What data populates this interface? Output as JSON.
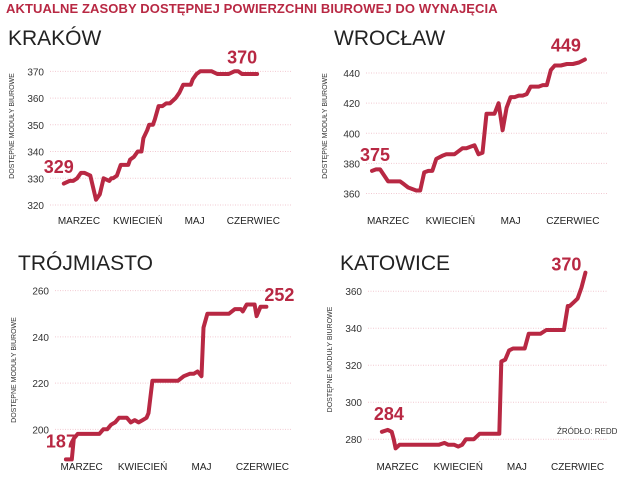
{
  "header": {
    "title": "AKTUALNE ZASOBY DOSTĘPNEJ POWIERZCHNI BIUROWEJ DO WYNAJĘCIA"
  },
  "source": "ŹRÓDŁO: REDD",
  "colors": {
    "line": "#b82843",
    "grid": "#f2c9d1",
    "header": "#b82843"
  },
  "chart_data": [
    {
      "type": "line",
      "title": "KRAKÓW",
      "ylabel": "DOSTĘPNE MODUŁY BIUROWE",
      "ylim": [
        320,
        372
      ],
      "yticks": [
        320,
        330,
        340,
        350,
        360,
        370
      ],
      "xticks": [
        {
          "x": 0,
          "label": "MARZEC"
        },
        {
          "x": 31,
          "label": "KWIECIEŃ"
        },
        {
          "x": 61,
          "label": "MAJ"
        },
        {
          "x": 92,
          "label": "CZERWIEC"
        }
      ],
      "xlim": [
        -10,
        105
      ],
      "grid": true,
      "annotations": [
        {
          "label": "329",
          "value": 329
        },
        {
          "label": "370",
          "value": 370
        }
      ],
      "x": [
        -8,
        -5,
        -3,
        -1,
        1,
        3,
        6,
        9,
        11,
        13,
        16,
        17,
        18,
        20,
        22,
        24,
        26,
        27,
        29,
        31,
        33,
        34,
        36,
        37,
        39,
        40,
        42,
        43,
        44,
        46,
        48,
        51,
        53,
        55,
        57,
        59,
        60,
        62,
        64,
        67,
        70,
        73,
        76,
        79,
        82,
        84,
        86,
        88,
        91,
        94
      ],
      "y": [
        328,
        329,
        329,
        330,
        332,
        332,
        331,
        322,
        324,
        330,
        329,
        330,
        330,
        331,
        335,
        335,
        335,
        337,
        338,
        340,
        340,
        345,
        348,
        350,
        350,
        352,
        357,
        357,
        357,
        358,
        358,
        360,
        362,
        365,
        365,
        365,
        367,
        369,
        370,
        370,
        370,
        369,
        369,
        369,
        370,
        370,
        369,
        369,
        369,
        369
      ]
    },
    {
      "type": "line",
      "title": "WROCŁAW",
      "ylabel": "DOSTĘPNE MODUŁY BIUROWE",
      "ylim": [
        355,
        452
      ],
      "yticks": [
        360,
        380,
        400,
        420,
        440
      ],
      "xticks": [
        {
          "x": 0,
          "label": "MARZEC"
        },
        {
          "x": 31,
          "label": "KWIECIEŃ"
        },
        {
          "x": 61,
          "label": "MAJ"
        },
        {
          "x": 92,
          "label": "CZERWIEC"
        }
      ],
      "xlim": [
        -10,
        105
      ],
      "grid": true,
      "annotations": [
        {
          "label": "375",
          "value": 375
        },
        {
          "label": "449",
          "value": 449
        }
      ],
      "x": [
        -8,
        -6,
        -4,
        -2,
        0,
        3,
        6,
        8,
        10,
        12,
        14,
        16,
        18,
        20,
        22,
        24,
        27,
        29,
        31,
        33,
        35,
        37,
        39,
        41,
        43,
        45,
        47,
        49,
        51,
        53,
        55,
        57,
        59,
        61,
        63,
        65,
        67,
        69,
        71,
        73,
        75,
        77,
        79,
        81,
        83,
        86,
        89,
        92,
        95,
        98
      ],
      "y": [
        375,
        376,
        376,
        372,
        368,
        368,
        368,
        366,
        364,
        363,
        362,
        362,
        374,
        375,
        375,
        383,
        385,
        386,
        386,
        386,
        388,
        390,
        390,
        391,
        392,
        386,
        387,
        413,
        413,
        413,
        420,
        402,
        417,
        424,
        424,
        425,
        425,
        426,
        431,
        431,
        431,
        432,
        432,
        442,
        445,
        445,
        446,
        446,
        447,
        449
      ]
    },
    {
      "type": "line",
      "title": "TRÓJMIASTO",
      "ylabel": "DOSTĘPNE MODUŁY BIUROWE",
      "ylim": [
        185,
        262
      ],
      "yticks": [
        200,
        220,
        240,
        260
      ],
      "xticks": [
        {
          "x": 0,
          "label": "MARZEC"
        },
        {
          "x": 31,
          "label": "KWIECIEŃ"
        },
        {
          "x": 61,
          "label": "MAJ"
        },
        {
          "x": 92,
          "label": "CZERWIEC"
        }
      ],
      "xlim": [
        -10,
        105
      ],
      "grid": true,
      "annotations": [
        {
          "label": "187",
          "value": 187
        },
        {
          "label": "252",
          "value": 252
        }
      ],
      "x": [
        -8,
        -5,
        -4,
        -2,
        0,
        3,
        6,
        9,
        11,
        13,
        15,
        17,
        19,
        21,
        23,
        25,
        27,
        29,
        31,
        33,
        34,
        36,
        38,
        40,
        43,
        46,
        49,
        52,
        55,
        57,
        59,
        61,
        62,
        64,
        66,
        69,
        72,
        75,
        78,
        81,
        82,
        84,
        86,
        88,
        89,
        91,
        94
      ],
      "y": [
        187,
        187,
        196,
        198,
        198,
        198,
        198,
        198,
        200,
        200,
        202,
        203,
        205,
        205,
        205,
        203,
        204,
        203,
        204,
        205,
        207,
        221,
        221,
        221,
        221,
        221,
        221,
        223,
        224,
        224,
        225,
        223,
        244,
        250,
        250,
        250,
        250,
        250,
        252,
        252,
        251,
        254,
        254,
        254,
        249,
        253,
        253
      ]
    },
    {
      "type": "line",
      "title": "KATOWICE",
      "ylabel": "DOSTĘPNE MODUŁY BIUROWE",
      "ylim": [
        272,
        372
      ],
      "yticks": [
        280,
        300,
        320,
        340,
        360
      ],
      "xticks": [
        {
          "x": 0,
          "label": "MARZEC"
        },
        {
          "x": 31,
          "label": "KWIECIEŃ"
        },
        {
          "x": 61,
          "label": "MAJ"
        },
        {
          "x": 92,
          "label": "CZERWIEC"
        }
      ],
      "xlim": [
        -10,
        105
      ],
      "grid": true,
      "annotations": [
        {
          "label": "284",
          "value": 284
        },
        {
          "label": "370",
          "value": 370
        }
      ],
      "x": [
        -8,
        -5,
        -3,
        -2,
        -1,
        1,
        4,
        8,
        12,
        16,
        19,
        21,
        24,
        26,
        29,
        31,
        33,
        35,
        37,
        39,
        42,
        45,
        48,
        50,
        52,
        53,
        55,
        57,
        59,
        61,
        63,
        65,
        67,
        70,
        73,
        76,
        79,
        82,
        84,
        85,
        87,
        88,
        90,
        92,
        94,
        96
      ],
      "y": [
        284,
        285,
        284,
        280,
        275,
        277,
        277,
        277,
        277,
        277,
        277,
        277,
        278,
        277,
        277,
        276,
        277,
        280,
        280,
        280,
        283,
        283,
        283,
        283,
        283,
        322,
        323,
        328,
        329,
        329,
        329,
        329,
        337,
        337,
        337,
        339,
        339,
        339,
        339,
        339,
        352,
        352,
        354,
        356,
        362,
        370
      ]
    }
  ]
}
